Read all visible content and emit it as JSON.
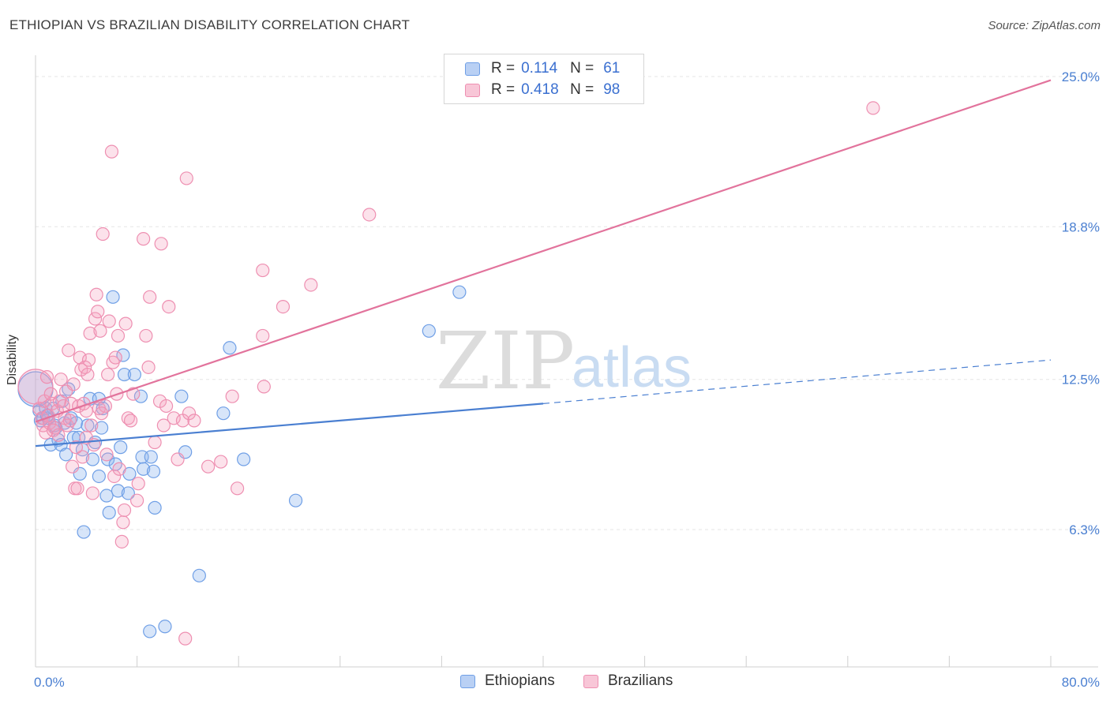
{
  "title": "ETHIOPIAN VS BRAZILIAN DISABILITY CORRELATION CHART",
  "source": "Source: ZipAtlas.com",
  "watermark": {
    "zip": "ZIP",
    "atlas": "atlas"
  },
  "legend": {
    "rows": [
      {
        "r_label": "R =",
        "r_value": "0.114",
        "n_label": "N =",
        "n_value": "61",
        "color": "#6f9fe6",
        "fill": "#b9d0f4"
      },
      {
        "r_label": "R =",
        "r_value": "0.418",
        "n_label": "N =",
        "n_value": "98",
        "color": "#ee8fb1",
        "fill": "#f8c6d7"
      }
    ]
  },
  "bottom_legend": [
    {
      "label": "Ethiopians",
      "color": "#6f9fe6",
      "fill": "#b9d0f4"
    },
    {
      "label": "Brazilians",
      "color": "#ee8fb1",
      "fill": "#f8c6d7"
    }
  ],
  "chart_data": {
    "type": "scatter",
    "title": "ETHIOPIAN VS BRAZILIAN DISABILITY CORRELATION CHART",
    "xlabel": "",
    "ylabel": "Disability",
    "xlim": [
      0,
      80
    ],
    "ylim": [
      0,
      26
    ],
    "x_tick_labels": [
      {
        "value": 0,
        "label": "0.0%"
      },
      {
        "value": 80,
        "label": "80.0%"
      }
    ],
    "y_tick_labels": [
      {
        "value": 6.3,
        "label": "6.3%"
      },
      {
        "value": 12.5,
        "label": "12.5%"
      },
      {
        "value": 18.8,
        "label": "18.8%"
      },
      {
        "value": 25.0,
        "label": "25.0%"
      }
    ],
    "series": [
      {
        "name": "Ethiopians",
        "color": "#4a7fd1",
        "trend": {
          "x0": 0,
          "y0": 9.75,
          "x1": 40,
          "y1": 11.5,
          "dash_to_x": 80,
          "dash_to_y": 13.3
        },
        "points": [
          [
            0.3,
            11.2
          ],
          [
            0.4,
            10.8
          ],
          [
            0.6,
            10.9
          ],
          [
            0.8,
            11.3
          ],
          [
            1.0,
            10.9
          ],
          [
            1.2,
            9.8
          ],
          [
            1.4,
            11.3
          ],
          [
            1.6,
            10.5
          ],
          [
            1.8,
            10.0
          ],
          [
            2.0,
            9.8
          ],
          [
            2.3,
            10.7
          ],
          [
            2.4,
            9.4
          ],
          [
            2.6,
            12.1
          ],
          [
            2.8,
            10.9
          ],
          [
            3.0,
            10.1
          ],
          [
            3.2,
            10.7
          ],
          [
            3.4,
            10.1
          ],
          [
            3.5,
            8.6
          ],
          [
            3.7,
            9.6
          ],
          [
            3.8,
            6.2
          ],
          [
            4.1,
            10.6
          ],
          [
            4.3,
            11.7
          ],
          [
            4.5,
            9.2
          ],
          [
            4.7,
            9.9
          ],
          [
            5.0,
            11.7
          ],
          [
            5.0,
            8.5
          ],
          [
            5.2,
            10.5
          ],
          [
            5.3,
            11.3
          ],
          [
            5.6,
            7.7
          ],
          [
            5.7,
            9.2
          ],
          [
            5.8,
            7.0
          ],
          [
            6.1,
            15.9
          ],
          [
            6.3,
            9.0
          ],
          [
            6.5,
            7.9
          ],
          [
            6.7,
            9.7
          ],
          [
            6.9,
            13.5
          ],
          [
            7.0,
            12.7
          ],
          [
            7.3,
            7.8
          ],
          [
            7.4,
            8.6
          ],
          [
            7.8,
            12.7
          ],
          [
            8.4,
            9.3
          ],
          [
            8.5,
            8.8
          ],
          [
            8.3,
            11.8
          ],
          [
            9.1,
            9.3
          ],
          [
            9.3,
            8.7
          ],
          [
            9.4,
            7.2
          ],
          [
            9.0,
            2.1
          ],
          [
            10.2,
            2.3
          ],
          [
            11.5,
            11.8
          ],
          [
            11.8,
            9.5
          ],
          [
            12.9,
            4.4
          ],
          [
            14.8,
            11.1
          ],
          [
            15.3,
            13.8
          ],
          [
            16.4,
            9.2
          ],
          [
            20.5,
            7.5
          ],
          [
            31.0,
            14.5
          ],
          [
            33.4,
            16.1
          ],
          [
            0.0,
            12.1
          ],
          [
            1.5,
            10.6
          ],
          [
            2.1,
            11.6
          ],
          [
            0.9,
            11.0
          ]
        ]
      },
      {
        "name": "Brazilians",
        "color": "#e2739c",
        "trend": {
          "x0": 0,
          "y0": 10.75,
          "x1": 80,
          "y1": 24.85
        },
        "points": [
          [
            0.3,
            11.3
          ],
          [
            0.5,
            10.9
          ],
          [
            0.6,
            10.6
          ],
          [
            0.7,
            11.6
          ],
          [
            0.8,
            10.3
          ],
          [
            1.0,
            11.0
          ],
          [
            1.1,
            10.7
          ],
          [
            1.3,
            11.5
          ],
          [
            1.5,
            10.5
          ],
          [
            1.7,
            11.2
          ],
          [
            1.9,
            11.6
          ],
          [
            2.0,
            12.5
          ],
          [
            2.2,
            11.4
          ],
          [
            2.3,
            10.9
          ],
          [
            2.5,
            10.6
          ],
          [
            2.6,
            13.7
          ],
          [
            2.8,
            11.5
          ],
          [
            2.9,
            8.9
          ],
          [
            3.0,
            12.3
          ],
          [
            3.1,
            8.0
          ],
          [
            3.3,
            8.0
          ],
          [
            3.4,
            11.4
          ],
          [
            3.5,
            13.4
          ],
          [
            3.6,
            12.9
          ],
          [
            3.8,
            11.5
          ],
          [
            3.9,
            13.0
          ],
          [
            4.0,
            11.2
          ],
          [
            4.1,
            12.7
          ],
          [
            4.2,
            13.3
          ],
          [
            4.3,
            14.4
          ],
          [
            4.4,
            10.6
          ],
          [
            4.5,
            7.8
          ],
          [
            4.6,
            9.8
          ],
          [
            4.7,
            15.0
          ],
          [
            4.8,
            16.0
          ],
          [
            4.9,
            15.3
          ],
          [
            5.0,
            11.3
          ],
          [
            5.1,
            14.5
          ],
          [
            5.3,
            18.5
          ],
          [
            5.5,
            11.4
          ],
          [
            5.6,
            9.4
          ],
          [
            5.8,
            14.9
          ],
          [
            6.0,
            21.9
          ],
          [
            6.1,
            13.2
          ],
          [
            6.2,
            8.5
          ],
          [
            6.4,
            11.9
          ],
          [
            6.5,
            14.3
          ],
          [
            6.6,
            8.8
          ],
          [
            6.8,
            5.8
          ],
          [
            6.9,
            6.6
          ],
          [
            7.0,
            7.1
          ],
          [
            7.1,
            14.8
          ],
          [
            7.3,
            10.9
          ],
          [
            7.5,
            10.8
          ],
          [
            8.0,
            7.5
          ],
          [
            8.5,
            18.3
          ],
          [
            8.7,
            14.3
          ],
          [
            8.9,
            13.0
          ],
          [
            9.0,
            15.9
          ],
          [
            9.8,
            11.6
          ],
          [
            9.9,
            18.1
          ],
          [
            10.1,
            10.6
          ],
          [
            10.5,
            15.5
          ],
          [
            10.9,
            10.9
          ],
          [
            11.2,
            9.2
          ],
          [
            11.6,
            10.8
          ],
          [
            11.9,
            20.8
          ],
          [
            12.1,
            11.1
          ],
          [
            13.6,
            8.9
          ],
          [
            14.6,
            9.1
          ],
          [
            15.5,
            11.8
          ],
          [
            15.9,
            8.0
          ],
          [
            17.9,
            17.0
          ],
          [
            17.9,
            14.3
          ],
          [
            18.0,
            12.2
          ],
          [
            19.5,
            15.5
          ],
          [
            21.7,
            16.4
          ],
          [
            26.3,
            19.3
          ],
          [
            66.0,
            23.7
          ],
          [
            0.0,
            12.2
          ],
          [
            1.2,
            11.9
          ],
          [
            2.7,
            10.8
          ],
          [
            3.7,
            9.3
          ],
          [
            5.2,
            11.1
          ],
          [
            7.7,
            11.9
          ],
          [
            9.4,
            9.9
          ],
          [
            4.0,
            10.1
          ],
          [
            6.3,
            13.4
          ],
          [
            1.4,
            10.4
          ],
          [
            2.4,
            12.0
          ],
          [
            0.9,
            12.6
          ],
          [
            11.8,
            1.8
          ],
          [
            8.1,
            8.2
          ],
          [
            12.5,
            10.8
          ],
          [
            10.3,
            11.4
          ],
          [
            5.7,
            12.7
          ],
          [
            3.2,
            9.7
          ],
          [
            1.8,
            10.2
          ]
        ]
      }
    ]
  }
}
